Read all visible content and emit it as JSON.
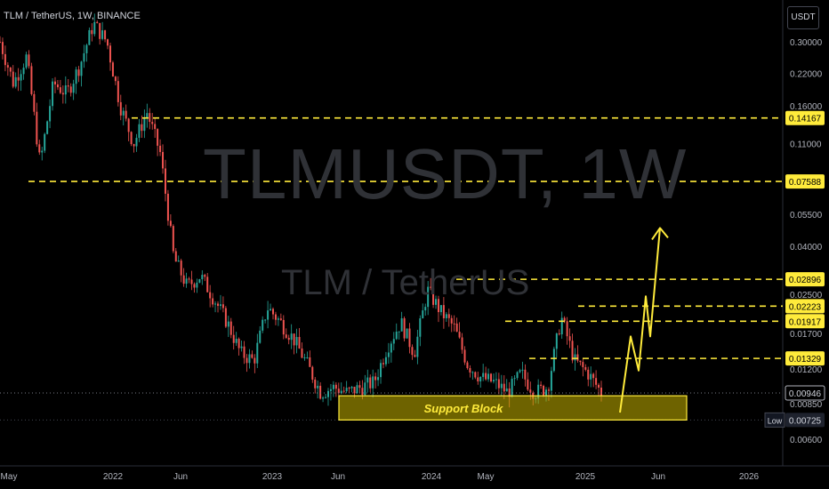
{
  "header": {
    "symbol_line": "TLM / TetherUS, 1W, BINANCE",
    "currency": "USDT"
  },
  "watermark": {
    "title": "TLMUSDT, 1W",
    "subtitle": "TLM / TetherUS"
  },
  "colors": {
    "level": "#ffeb3b",
    "support": "#c8b400",
    "up": "#26a69a",
    "down": "#ef5350",
    "background": "#000000"
  },
  "chart_data": {
    "type": "candlestick",
    "price_axis": {
      "scale": "log",
      "ticks": [
        "0.30000",
        "0.22000",
        "0.16000",
        "0.11000",
        "0.05500",
        "0.04000",
        "0.02500",
        "0.01700",
        "0.01200",
        "0.00850",
        "0.00600"
      ]
    },
    "time_axis": {
      "labels": [
        "May",
        "2022",
        "Jun",
        "2023",
        "Jun",
        "2024",
        "May",
        "2025",
        "Jun",
        "2026"
      ]
    },
    "levels": [
      "0.14167",
      "0.07588",
      "0.02896",
      "0.02223",
      "0.01917",
      "0.01329"
    ],
    "current_price": "0.00946",
    "low": {
      "label": "Low",
      "value": "0.00725"
    },
    "support_block": {
      "label": "Support Block",
      "from": 0.00725,
      "to": 0.0092
    },
    "projection": {
      "description": "zigzag arrow up",
      "points": [
        0.0078,
        0.0165,
        0.0118,
        0.0245,
        0.0165,
        0.048
      ]
    },
    "price_path": [
      0.3,
      0.2,
      0.26,
      0.09,
      0.2,
      0.18,
      0.24,
      0.36,
      0.3,
      0.16,
      0.11,
      0.15,
      0.1,
      0.036,
      0.027,
      0.03,
      0.024,
      0.019,
      0.014,
      0.013,
      0.022,
      0.019,
      0.016,
      0.0125,
      0.0095,
      0.01,
      0.0095,
      0.01,
      0.0105,
      0.015,
      0.019,
      0.014,
      0.026,
      0.021,
      0.018,
      0.0125,
      0.011,
      0.0105,
      0.0095,
      0.0115,
      0.0095,
      0.01,
      0.02,
      0.013,
      0.0115,
      0.0095
    ]
  }
}
